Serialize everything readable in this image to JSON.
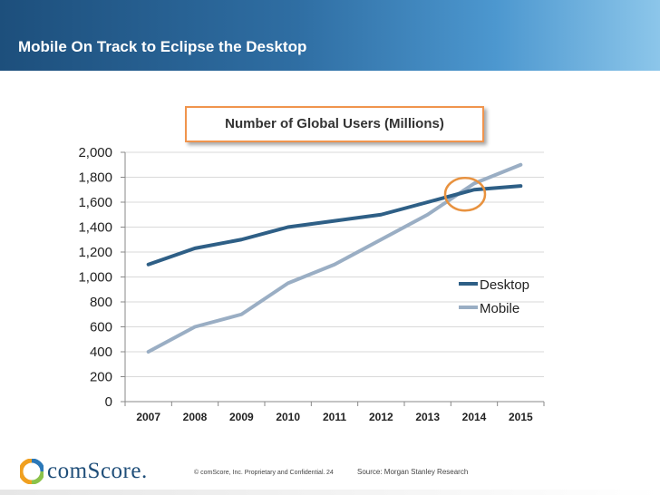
{
  "slide": {
    "title": "Mobile On Track to Eclipse the Desktop"
  },
  "colors": {
    "desktop": "#2e5f86",
    "mobile": "#9aaec4",
    "highlight": "#e8923f",
    "grid": "#d9d9d9"
  },
  "chart_data": {
    "type": "line",
    "title": "Number of Global Users (Millions)",
    "xlabel": "",
    "ylabel": "",
    "categories": [
      "2007",
      "2008",
      "2009",
      "2010",
      "2011",
      "2012",
      "2013",
      "2014",
      "2015"
    ],
    "series": [
      {
        "name": "Desktop",
        "values": [
          1100,
          1230,
          1300,
          1400,
          1450,
          1500,
          1600,
          1700,
          1730
        ]
      },
      {
        "name": "Mobile",
        "values": [
          400,
          600,
          700,
          950,
          1100,
          1300,
          1500,
          1750,
          1900
        ]
      }
    ],
    "ylim": [
      0,
      2000
    ],
    "yticks": [
      0,
      200,
      400,
      600,
      800,
      1000,
      1200,
      1400,
      1600,
      1800,
      2000
    ],
    "ytick_labels": [
      "0",
      "200",
      "400",
      "600",
      "800",
      "1,000",
      "1,200",
      "1,400",
      "1,600",
      "1,800",
      "2,000"
    ],
    "grid": true,
    "legend_position": "right",
    "annotation": {
      "type": "circle",
      "x": "2014",
      "y": 1700,
      "meaning": "crossover point"
    }
  },
  "footer": {
    "logo": "comScore.",
    "copyright": "© comScore, Inc.  Proprietary and Confidential.",
    "page_number": "24",
    "source": "Source: Morgan Stanley Research"
  }
}
